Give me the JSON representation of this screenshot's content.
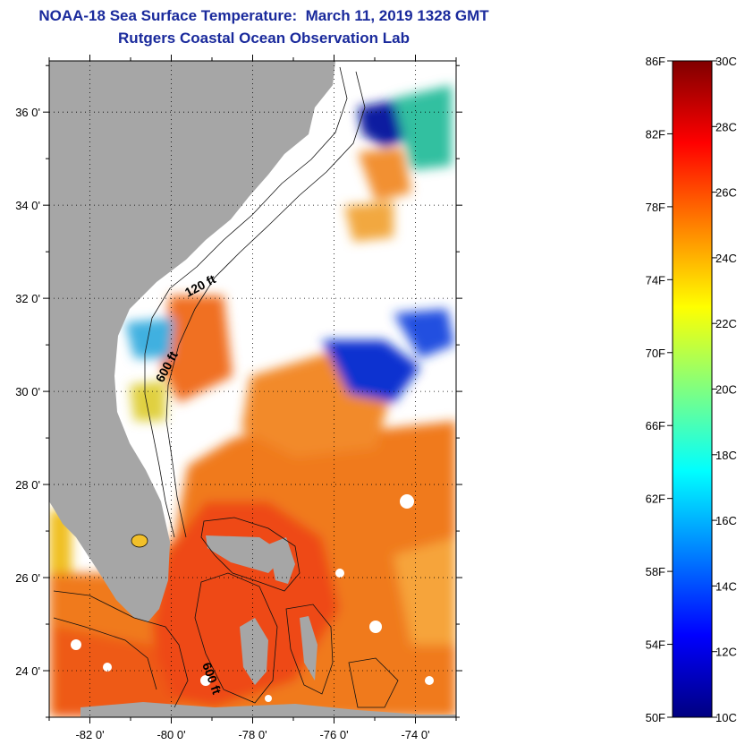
{
  "title": "NOAA-18 Sea Surface Temperature:  March 11, 2019 1328 GMT",
  "subtitle": "Rutgers Coastal Ocean Observation Lab",
  "map": {
    "lat_labels": [
      "36 0'",
      "34 0'",
      "32 0'",
      "30 0'",
      "28 0'",
      "26 0'",
      "24 0'"
    ],
    "lat_values": [
      36,
      34,
      32,
      30,
      28,
      26,
      24
    ],
    "lon_labels": [
      "-82 0'",
      "-80 0'",
      "-78 0'",
      "-76 0'",
      "-74 0'"
    ],
    "lon_values": [
      -82,
      -80,
      -78,
      -76,
      -74
    ],
    "lat_range": [
      23,
      37.1
    ],
    "lon_range": [
      -83,
      -73
    ],
    "contour_labels": [
      "120 ft",
      "600 ft",
      "600 ft"
    ],
    "colors": {
      "land": "#a6a6a6",
      "cloud": "#ffffff",
      "frame": "#000000"
    }
  },
  "colorbar": {
    "fahrenheit_labels": [
      "86F",
      "82F",
      "78F",
      "74F",
      "70F",
      "66F",
      "62F",
      "58F",
      "54F",
      "50F"
    ],
    "celsius_labels": [
      "30C",
      "28C",
      "26C",
      "24C",
      "22C",
      "20C",
      "18C",
      "16C",
      "14C",
      "12C",
      "10C"
    ],
    "range_c": [
      10,
      30
    ],
    "range_f": [
      50,
      86
    ],
    "gradient": [
      "#000080",
      "#0000ff",
      "#0080ff",
      "#00ffff",
      "#80ff80",
      "#ffff00",
      "#ff8000",
      "#ff0000",
      "#800000"
    ]
  }
}
